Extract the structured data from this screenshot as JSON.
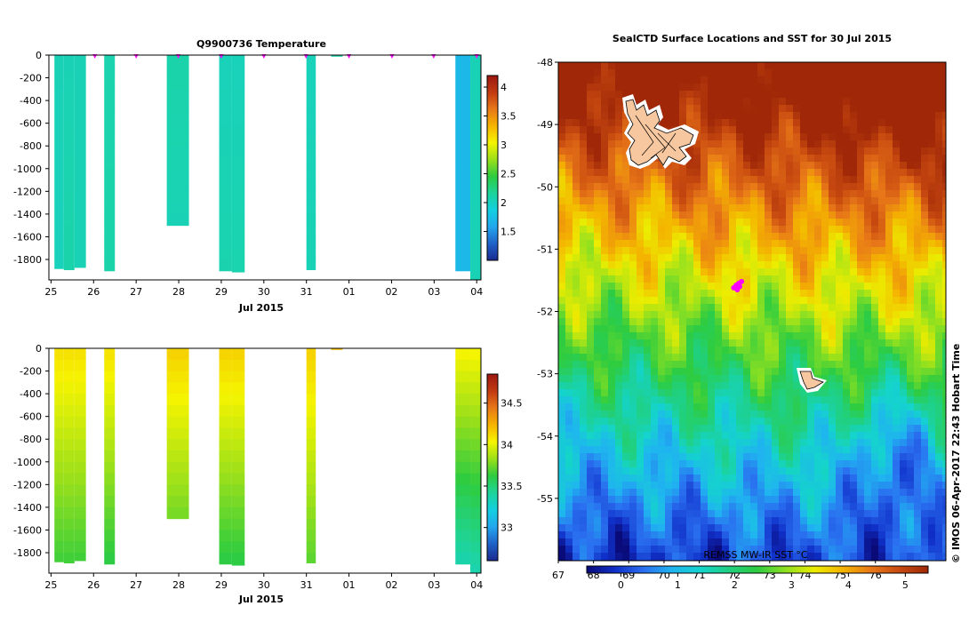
{
  "colors": {
    "temperature_scale": [
      "#1b2a8f",
      "#1f62c8",
      "#22a7ee",
      "#12d0e0",
      "#1ed49a",
      "#2ecc40",
      "#9be01a",
      "#f5f400",
      "#f6b400",
      "#e87818",
      "#c23a12",
      "#9c1810"
    ],
    "salinity_scale": [
      "#1b2a8f",
      "#1f62c8",
      "#22a7ee",
      "#12d0e0",
      "#1ed49a",
      "#2ecc40",
      "#9be01a",
      "#f5f400",
      "#f6b400",
      "#e87818",
      "#c23a12",
      "#9c1810"
    ],
    "sst_scale": [
      "#0a0a78",
      "#1030c8",
      "#2a6ff0",
      "#1fb4f0",
      "#14d4cc",
      "#20d080",
      "#2ecc40",
      "#8fe020",
      "#ecec00",
      "#f4b400",
      "#e87818",
      "#c84a10",
      "#a02808"
    ],
    "land": "#f7c7a0",
    "track": "#ff00ff"
  },
  "chart_data": [
    {
      "type": "heatmap",
      "title": "Q9900736  Temperature",
      "xlabel": "Jul 2015",
      "x_ticks": [
        "25",
        "26",
        "27",
        "28",
        "29",
        "30",
        "31",
        "01",
        "02",
        "03",
        "04"
      ],
      "y_ticks": [
        "0",
        "-200",
        "-400",
        "-600",
        "-800",
        "-1000",
        "-1200",
        "-1400",
        "-1600",
        "-1800"
      ],
      "ylim": [
        -1980,
        0
      ],
      "colorbar_ticks": [
        "4",
        "3.5",
        "3",
        "2.5",
        "2",
        "1.5"
      ],
      "colorbar_range": [
        1.0,
        4.2
      ],
      "profiles": [
        {
          "t_start": 25.08,
          "t_end": 25.3,
          "depth_max": 1880,
          "value_surface": 2.05,
          "value_bottom": 2.02
        },
        {
          "t_start": 25.3,
          "t_end": 25.55,
          "depth_max": 1890,
          "value_surface": 2.05,
          "value_bottom": 2.1
        },
        {
          "t_start": 25.55,
          "t_end": 25.82,
          "depth_max": 1870,
          "value_surface": 2.05,
          "value_bottom": 2.05
        },
        {
          "t_start": 26.25,
          "t_end": 26.5,
          "depth_max": 1900,
          "value_surface": 2.08,
          "value_bottom": 2.1
        },
        {
          "t_start": 27.72,
          "t_end": 28.24,
          "depth_max": 1500,
          "value_surface": 2.1,
          "value_bottom": 2.05
        },
        {
          "t_start": 28.95,
          "t_end": 29.25,
          "depth_max": 1900,
          "value_surface": 2.03,
          "value_bottom": 2.08
        },
        {
          "t_start": 29.25,
          "t_end": 29.55,
          "depth_max": 1910,
          "value_surface": 2.03,
          "value_bottom": 2.08
        },
        {
          "t_start": 31.0,
          "t_end": 31.22,
          "depth_max": 1890,
          "value_surface": 2.03,
          "value_bottom": 2.05
        },
        {
          "t_start": 31.58,
          "t_end": 31.85,
          "depth_max": 10,
          "value_surface": 2.1,
          "value_bottom": 2.1
        },
        {
          "t_start": 34.5,
          "t_end": 34.85,
          "depth_max": 1900,
          "value_surface": 1.7,
          "value_bottom": 1.7
        },
        {
          "t_start": 34.85,
          "t_end": 35.1,
          "depth_max": 1980,
          "value_surface": 2.05,
          "value_bottom": 2.05
        }
      ],
      "surface_markers": [
        26.03,
        27.0,
        27.99,
        29.0,
        30.0,
        30.99,
        32.0,
        33.01,
        33.99,
        35.0
      ]
    },
    {
      "type": "heatmap",
      "xlabel": "Jul 2015",
      "x_ticks": [
        "25",
        "26",
        "27",
        "28",
        "29",
        "30",
        "31",
        "01",
        "02",
        "03",
        "04"
      ],
      "y_ticks": [
        "0",
        "-200",
        "-400",
        "-600",
        "-800",
        "-1000",
        "-1200",
        "-1400",
        "-1600",
        "-1800"
      ],
      "ylim": [
        -1980,
        0
      ],
      "colorbar_ticks": [
        "34.5",
        "34",
        "33.5",
        "33"
      ],
      "colorbar_range": [
        32.6,
        34.85
      ],
      "profiles": [
        {
          "t_start": 25.08,
          "t_end": 25.3,
          "depth_max": 1880,
          "value_surface": 34.1,
          "value_bottom": 33.65
        },
        {
          "t_start": 25.3,
          "t_end": 25.55,
          "depth_max": 1890,
          "value_surface": 34.1,
          "value_bottom": 33.65
        },
        {
          "t_start": 25.55,
          "t_end": 25.82,
          "depth_max": 1870,
          "value_surface": 34.1,
          "value_bottom": 33.65
        },
        {
          "t_start": 26.25,
          "t_end": 26.5,
          "depth_max": 1900,
          "value_surface": 34.1,
          "value_bottom": 33.6
        },
        {
          "t_start": 27.72,
          "t_end": 28.24,
          "depth_max": 1500,
          "value_surface": 34.15,
          "value_bottom": 33.75
        },
        {
          "t_start": 28.95,
          "t_end": 29.25,
          "depth_max": 1900,
          "value_surface": 34.15,
          "value_bottom": 33.6
        },
        {
          "t_start": 29.25,
          "t_end": 29.55,
          "depth_max": 1910,
          "value_surface": 34.15,
          "value_bottom": 33.6
        },
        {
          "t_start": 31.0,
          "t_end": 31.22,
          "depth_max": 1890,
          "value_surface": 34.15,
          "value_bottom": 33.7
        },
        {
          "t_start": 31.58,
          "t_end": 31.85,
          "depth_max": 10,
          "value_surface": 34.2,
          "value_bottom": 34.2
        },
        {
          "t_start": 34.5,
          "t_end": 34.85,
          "depth_max": 1900,
          "value_surface": 34.05,
          "value_bottom": 33.35
        },
        {
          "t_start": 34.85,
          "t_end": 35.1,
          "depth_max": 1980,
          "value_surface": 34.05,
          "value_bottom": 33.35
        }
      ]
    },
    {
      "type": "heatmap",
      "title": "SealCTD Surface Locations and SST for 30 Jul 2015",
      "x_ticks": [
        "67",
        "68",
        "69",
        "70",
        "71",
        "72",
        "73",
        "74",
        "75",
        "76"
      ],
      "xlim": [
        67,
        78
      ],
      "y_ticks": [
        "-48",
        "-49",
        "-50",
        "-51",
        "-52",
        "-53",
        "-54",
        "-55"
      ],
      "ylim": [
        -56,
        -48
      ],
      "colorbar_label": "REMSS MW-IR SST °C",
      "colorbar_ticks": [
        "0",
        "1",
        "2",
        "3",
        "4",
        "5"
      ],
      "colorbar_range": [
        -0.6,
        5.4
      ],
      "land_areas": [
        "Kerguelen",
        "Heard"
      ],
      "track_points": [
        [
          72.05,
          -51.58
        ],
        [
          72.12,
          -51.55
        ],
        [
          71.98,
          -51.62
        ],
        [
          72.2,
          -51.52
        ],
        [
          72.08,
          -51.65
        ],
        [
          72.15,
          -51.6
        ]
      ]
    }
  ],
  "credit": "©  IMOS 06-Apr-2017 22:43 Hobart Time"
}
